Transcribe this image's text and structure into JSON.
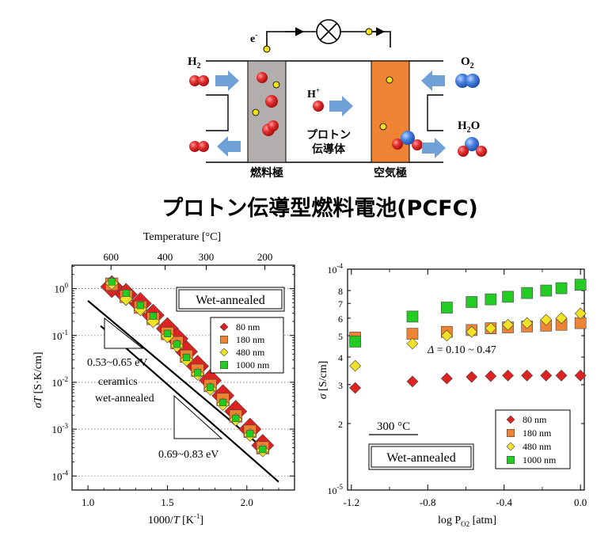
{
  "diagram": {
    "title": "プロトン伝導型燃料電池(PCFC)",
    "electron": "e",
    "electron_sup": "-",
    "h2": "H",
    "h2_sub": "2",
    "o2": "O",
    "o2_sub": "2",
    "h2o_a": "H",
    "h2o_sub": "2",
    "h2o_b": "O",
    "proton": "H",
    "proton_sup": "+",
    "electrolyte_line1": "プロトン",
    "electrolyte_line2": "伝導体",
    "anode": "燃料極",
    "cathode": "空気極",
    "colors": {
      "anode": "#b2aeae",
      "cathode": "#ee8433",
      "hydrogen": "#dd2222",
      "oxygen": "#3a75d6",
      "arrow": "#6fa0d8",
      "electron": "#f5e21a"
    }
  },
  "chart_data": [
    {
      "type": "scatter",
      "title": "",
      "xlabel": "1000/T [K-1]",
      "ylabel": "σT [S·K/cm]",
      "top_axis_label": "Temperature [°C]",
      "top_ticks": [
        {
          "label": "600",
          "value": 600
        },
        {
          "label": "400",
          "value": 400
        },
        {
          "label": "300",
          "value": 300
        },
        {
          "label": "200",
          "value": 200
        }
      ],
      "xlim": [
        0.9,
        2.3
      ],
      "ylim_log": [
        -4.3,
        0.5
      ],
      "x_ticks": [
        "1.0",
        "1.5",
        "2.0"
      ],
      "y_ticks": [
        {
          "base": "10",
          "exp": "0"
        },
        {
          "base": "10",
          "exp": "-1"
        },
        {
          "base": "10",
          "exp": "-2"
        },
        {
          "base": "10",
          "exp": "-3"
        },
        {
          "base": "10",
          "exp": "-4"
        }
      ],
      "box_label": "Wet-annealed",
      "annotations": {
        "slope_wet": "0.53~0.65 eV",
        "ceramics_line1": "ceramics",
        "ceramics_line2": "wet-annealed",
        "slope_ceramics": "0.69~0.83 eV"
      },
      "series": [
        {
          "name": "80 nm",
          "marker": "diamond",
          "color": "#dd2222",
          "x": [
            1.15,
            1.24,
            1.33,
            1.41,
            1.5,
            1.56,
            1.62,
            1.69,
            1.77,
            1.85,
            1.93,
            2.02,
            2.1
          ],
          "y": [
            1.1,
            0.75,
            0.48,
            0.27,
            0.14,
            0.085,
            0.045,
            0.022,
            0.011,
            0.0052,
            0.0024,
            0.001,
            0.00045
          ]
        },
        {
          "name": "180 nm",
          "marker": "square",
          "color": "#ee8433",
          "x": [
            1.15,
            1.24,
            1.33,
            1.41,
            1.5,
            1.56,
            1.62,
            1.69,
            1.77,
            1.85,
            1.93,
            2.02,
            2.1
          ],
          "y": [
            1.25,
            0.68,
            0.4,
            0.23,
            0.11,
            0.07,
            0.036,
            0.018,
            0.0085,
            0.0043,
            0.0019,
            0.0009,
            0.0004
          ]
        },
        {
          "name": "480 nm",
          "marker": "diamond",
          "color": "#f2e227",
          "x": [
            1.15,
            1.24,
            1.33,
            1.41,
            1.5,
            1.56,
            1.62,
            1.69,
            1.77,
            1.85,
            1.93,
            2.02,
            2.1
          ],
          "y": [
            1.3,
            0.6,
            0.36,
            0.2,
            0.095,
            0.06,
            0.03,
            0.015,
            0.0072,
            0.0034,
            0.0016,
            0.00075,
            0.00035
          ]
        },
        {
          "name": "1000 nm",
          "marker": "square",
          "color": "#22cc22",
          "x": [
            1.15,
            1.24,
            1.33,
            1.41,
            1.5,
            1.56,
            1.62,
            1.69,
            1.77,
            1.85,
            1.93,
            2.02,
            2.1
          ],
          "y": [
            1.4,
            0.8,
            0.44,
            0.26,
            0.11,
            0.065,
            0.034,
            0.016,
            0.0078,
            0.0037,
            0.0017,
            0.0008,
            0.00037
          ]
        }
      ],
      "lines": [
        {
          "name": "wet-annealed film fit",
          "x": [
            1.0,
            2.12
          ],
          "y": [
            0.55,
            0.00035
          ]
        },
        {
          "name": "ceramics wet-annealed",
          "x": [
            1.08,
            2.2
          ],
          "y": [
            0.16,
            7.5e-05
          ]
        }
      ]
    },
    {
      "type": "scatter",
      "title": "",
      "xlabel": "log P",
      "xlabel_sub": "O2",
      "xlabel_unit": " [atm]",
      "ylabel": "σ [S/cm]",
      "xlim": [
        -1.22,
        0.02
      ],
      "ylim_log": [
        -5,
        -4
      ],
      "x_ticks": [
        {
          "label": "-1.2",
          "value": -1.2
        },
        {
          "label": "-0.8",
          "value": -0.8
        },
        {
          "label": "-0.4",
          "value": -0.4
        },
        {
          "label": "0.0",
          "value": 0.0
        }
      ],
      "y_ticks": [
        {
          "label": "10",
          "exp": "-5",
          "value": 1e-05
        },
        {
          "label": "2",
          "value": 2e-05
        },
        {
          "label": "3",
          "value": 3e-05
        },
        {
          "label": "4",
          "value": 4e-05
        },
        {
          "label": "5",
          "value": 5e-05
        },
        {
          "label": "6",
          "value": 6e-05
        },
        {
          "label": "7",
          "value": 7e-05
        },
        {
          "label": "8",
          "value": 8e-05
        },
        {
          "label": "10",
          "exp": "-4",
          "value": 0.0001
        }
      ],
      "delta_label": "Δ",
      "delta_value": " = 0.10 ~ 0.47",
      "temperature_label": "300 °C",
      "box_label": "Wet-annealed",
      "series": [
        {
          "name": "80 nm",
          "marker": "diamond",
          "color": "#dd2222",
          "x": [
            -1.18,
            -0.88,
            -0.7,
            -0.57,
            -0.47,
            -0.38,
            -0.28,
            -0.18,
            -0.1,
            0.0
          ],
          "y": [
            2.9e-05,
            3.1e-05,
            3.2e-05,
            3.25e-05,
            3.28e-05,
            3.3e-05,
            3.3e-05,
            3.3e-05,
            3.3e-05,
            3.3e-05
          ]
        },
        {
          "name": "180 nm",
          "marker": "square",
          "color": "#ee8433",
          "x": [
            -1.18,
            -0.88,
            -0.7,
            -0.57,
            -0.47,
            -0.38,
            -0.28,
            -0.18,
            -0.1,
            0.0
          ],
          "y": [
            4.9e-05,
            5.1e-05,
            5.2e-05,
            5.3e-05,
            5.4e-05,
            5.45e-05,
            5.5e-05,
            5.55e-05,
            5.6e-05,
            5.7e-05
          ]
        },
        {
          "name": "480 nm",
          "marker": "diamond",
          "color": "#f2e227",
          "x": [
            -1.18,
            -0.88,
            -0.7,
            -0.57,
            -0.47,
            -0.38,
            -0.28,
            -0.18,
            -0.1,
            0.0
          ],
          "y": [
            3.65e-05,
            4.6e-05,
            5e-05,
            5.2e-05,
            5.4e-05,
            5.6e-05,
            5.7e-05,
            5.9e-05,
            6e-05,
            6.3e-05
          ]
        },
        {
          "name": "1000 nm",
          "marker": "square",
          "color": "#22cc22",
          "x": [
            -1.18,
            -0.88,
            -0.7,
            -0.57,
            -0.47,
            -0.38,
            -0.28,
            -0.18,
            -0.1,
            0.0
          ],
          "y": [
            4.7e-05,
            6.1e-05,
            6.7e-05,
            7.1e-05,
            7.3e-05,
            7.5e-05,
            7.8e-05,
            8e-05,
            8.2e-05,
            8.5e-05
          ]
        }
      ]
    }
  ]
}
